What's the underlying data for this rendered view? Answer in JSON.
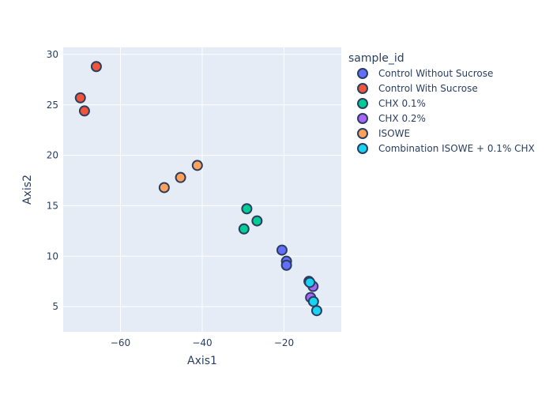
{
  "chart_data": {
    "type": "scatter",
    "xlabel": "Axis1",
    "ylabel": "Axis2",
    "xlim": [
      -74,
      -6
    ],
    "ylim": [
      2.5,
      30.7
    ],
    "xticks": [
      -60,
      -40,
      -20
    ],
    "yticks": [
      5,
      10,
      15,
      20,
      25,
      30
    ],
    "x_tick_labels": [
      "−60",
      "−40",
      "−20"
    ],
    "y_tick_labels": [
      "5",
      "10",
      "15",
      "20",
      "25",
      "30"
    ],
    "grid": true,
    "plot_background": "#e5ecf6",
    "marker_outline": "#2a3f5f",
    "legend": {
      "title": "sample_id",
      "position": "right"
    },
    "series": [
      {
        "name": "Control Without Sucrose",
        "color": "#636efa",
        "points": [
          [
            -20.5,
            10.6
          ],
          [
            -19.4,
            9.5
          ],
          [
            -19.4,
            9.1
          ]
        ]
      },
      {
        "name": "Control With Sucrose",
        "color": "#ef553b",
        "points": [
          [
            -65.9,
            28.8
          ],
          [
            -69.8,
            25.7
          ],
          [
            -68.8,
            24.4
          ]
        ]
      },
      {
        "name": "CHX 0.1%",
        "color": "#00cc96",
        "points": [
          [
            -29.1,
            14.7
          ],
          [
            -26.6,
            13.5
          ],
          [
            -29.8,
            12.7
          ]
        ]
      },
      {
        "name": "CHX 0.2%",
        "color": "#ab63fa",
        "points": [
          [
            -12.9,
            7.0
          ],
          [
            -13.5,
            5.9
          ],
          [
            -13.9,
            7.5
          ]
        ]
      },
      {
        "name": "ISOWE",
        "color": "#ffa15a",
        "points": [
          [
            -41.2,
            19.0
          ],
          [
            -45.3,
            17.8
          ],
          [
            -49.3,
            16.8
          ]
        ]
      },
      {
        "name": "Combination ISOWE + 0.1% CHX",
        "color": "#19d3f3",
        "points": [
          [
            -13.7,
            7.4
          ],
          [
            -12.8,
            5.5
          ],
          [
            -12.0,
            4.6
          ]
        ]
      }
    ]
  }
}
